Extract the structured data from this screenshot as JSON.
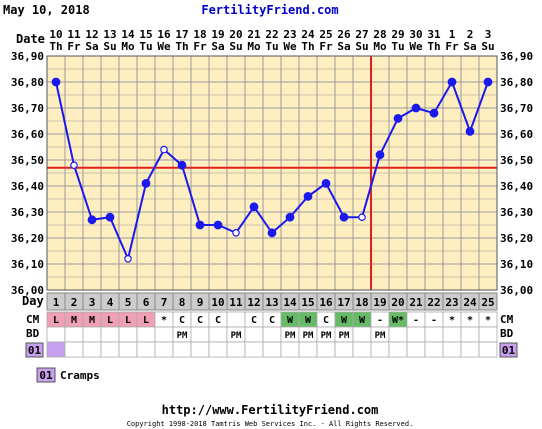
{
  "header": {
    "date": "May 10, 2018",
    "site": "FertilityFriend.com"
  },
  "footer": {
    "url": "http://www.FertilityFriend.com",
    "copyright": "Copyright 1998-2018 Tamtris Web Services Inc. - All Rights Reserved."
  },
  "row_labels": {
    "date": "Date",
    "day": "Day",
    "cm": "CM",
    "bd": "BD",
    "custom": "01"
  },
  "legend": [
    {
      "code": "01",
      "label": "Cramps",
      "color": "#c9a0f0"
    }
  ],
  "colors": {
    "background": "#ffeec0",
    "grid": "#999999",
    "line": "#1a1aee",
    "coverline": "#e02020",
    "ovulation": "#e02020",
    "menses": "#f0a0b4",
    "eggwhite": "#66bb66",
    "day_row": "#cccccc",
    "cramps": "#c9a0f0"
  },
  "chart_data": {
    "type": "line",
    "title": "",
    "xlabel": "Day",
    "ylabel": "",
    "ylim": [
      36.0,
      36.9
    ],
    "y_ticks": [
      "36,90",
      "36,80",
      "36,70",
      "36,60",
      "36,50",
      "36,40",
      "36,30",
      "36,20",
      "36,10",
      "36,00"
    ],
    "dates": [
      "10",
      "11",
      "12",
      "13",
      "14",
      "15",
      "16",
      "17",
      "18",
      "19",
      "20",
      "21",
      "22",
      "23",
      "24",
      "25",
      "26",
      "27",
      "28",
      "29",
      "30",
      "31",
      "1",
      "2",
      "3"
    ],
    "weekdays": [
      "Th",
      "Fr",
      "Sa",
      "Su",
      "Mo",
      "Tu",
      "We",
      "Th",
      "Fr",
      "Sa",
      "Su",
      "Mo",
      "Tu",
      "We",
      "Th",
      "Fr",
      "Sa",
      "Su",
      "Mo",
      "Tu",
      "We",
      "Th",
      "Fr",
      "Sa",
      "Su"
    ],
    "days": [
      1,
      2,
      3,
      4,
      5,
      6,
      7,
      8,
      9,
      10,
      11,
      12,
      13,
      14,
      15,
      16,
      17,
      18,
      19,
      20,
      21,
      22,
      23,
      24,
      25
    ],
    "series": [
      {
        "values": [
          36.8,
          36.48,
          36.27,
          36.28,
          36.12,
          36.41,
          36.54,
          36.48,
          36.25,
          36.25,
          36.22,
          36.32,
          36.22,
          36.28,
          36.36,
          36.41,
          36.28,
          36.28,
          36.52,
          36.66,
          36.7,
          36.68,
          36.8,
          36.61,
          36.8
        ],
        "open_points": [
          2,
          5,
          7,
          11,
          18
        ]
      }
    ],
    "coverline": 36.47,
    "ovulation_day": 18,
    "cm": [
      "L",
      "M",
      "M",
      "L",
      "L",
      "L",
      "*",
      "C",
      "C",
      "C",
      "",
      "C",
      "C",
      "W",
      "W",
      "C",
      "W",
      "W",
      "-",
      "W*",
      "-",
      "-",
      "*",
      "*",
      "*"
    ],
    "bd": [
      "",
      "",
      "",
      "",
      "",
      "",
      "",
      "PM",
      "",
      "",
      "PM",
      "",
      "",
      "PM",
      "PM",
      "PM",
      "PM",
      "",
      "PM",
      "",
      "",
      "",
      "",
      "",
      ""
    ],
    "custom_days": [
      1
    ]
  }
}
